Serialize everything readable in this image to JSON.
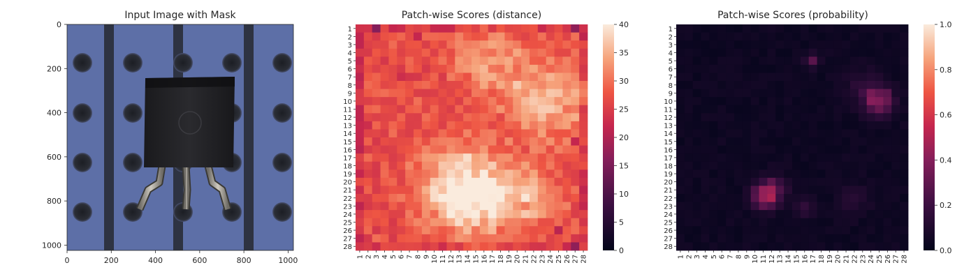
{
  "chart_data": [
    {
      "type": "image",
      "title": "Input Image with Mask",
      "xticks": [
        "0",
        "200",
        "400",
        "600",
        "800",
        "1000"
      ],
      "yticks": [
        "0",
        "200",
        "400",
        "600",
        "800",
        "1000"
      ],
      "xlim": [
        0,
        1024
      ],
      "ylim": [
        1024,
        0
      ],
      "subject": "transistor on perforated blue board"
    },
    {
      "type": "heatmap",
      "title": "Patch-wise Scores (distance)",
      "rows": 28,
      "cols": 28,
      "row_labels": [
        "1",
        "2",
        "3",
        "4",
        "5",
        "6",
        "7",
        "8",
        "9",
        "10",
        "11",
        "12",
        "13",
        "14",
        "15",
        "16",
        "17",
        "18",
        "19",
        "20",
        "21",
        "22",
        "23",
        "24",
        "25",
        "26",
        "27",
        "28"
      ],
      "col_labels": [
        "1",
        "2",
        "3",
        "4",
        "5",
        "6",
        "7",
        "8",
        "9",
        "10",
        "11",
        "12",
        "13",
        "14",
        "15",
        "16",
        "17",
        "18",
        "19",
        "20",
        "21",
        "22",
        "23",
        "24",
        "25",
        "26",
        "27",
        "28"
      ],
      "colorbar": {
        "min": 0,
        "max": 40,
        "ticks": [
          "0",
          "5",
          "10",
          "15",
          "20",
          "25",
          "30",
          "35",
          "40"
        ]
      },
      "colormap": "rocket",
      "base": 27,
      "hotspots": [
        {
          "row": 21,
          "col": 13,
          "value": 40,
          "spread": 3.5
        },
        {
          "row": 22,
          "col": 16,
          "value": 37,
          "spread": 3
        },
        {
          "row": 10,
          "col": 24,
          "value": 36,
          "spread": 3.5
        },
        {
          "row": 5,
          "col": 17,
          "value": 34,
          "spread": 3
        },
        {
          "row": 22,
          "col": 22,
          "value": 34,
          "spread": 2.5
        }
      ],
      "lowspots": [
        {
          "row": 1,
          "col": 3,
          "value": 19
        },
        {
          "row": 1,
          "col": 27,
          "value": 20
        },
        {
          "row": 2,
          "col": 8,
          "value": 22
        },
        {
          "row": 7,
          "col": 6,
          "value": 23
        },
        {
          "row": 13,
          "col": 2,
          "value": 23
        },
        {
          "row": 26,
          "col": 25,
          "value": 21
        },
        {
          "row": 28,
          "col": 27,
          "value": 20
        },
        {
          "row": 15,
          "col": 27,
          "value": 22
        }
      ]
    },
    {
      "type": "heatmap",
      "title": "Patch-wise Scores (probability)",
      "rows": 28,
      "cols": 28,
      "row_labels": [
        "1",
        "2",
        "3",
        "4",
        "5",
        "6",
        "7",
        "8",
        "9",
        "10",
        "11",
        "12",
        "13",
        "14",
        "15",
        "16",
        "17",
        "18",
        "19",
        "20",
        "21",
        "22",
        "23",
        "24",
        "25",
        "26",
        "27",
        "28"
      ],
      "col_labels": [
        "1",
        "2",
        "3",
        "4",
        "5",
        "6",
        "7",
        "8",
        "9",
        "10",
        "11",
        "12",
        "13",
        "14",
        "15",
        "16",
        "17",
        "18",
        "19",
        "20",
        "21",
        "22",
        "23",
        "24",
        "25",
        "26",
        "27",
        "28"
      ],
      "colorbar": {
        "min": 0,
        "max": 1,
        "ticks": [
          "0.0",
          "0.2",
          "0.4",
          "0.6",
          "0.8",
          "1.0"
        ]
      },
      "colormap": "rocket",
      "base": 0.02,
      "hotspots": [
        {
          "row": 10,
          "col": 25,
          "value": 0.38,
          "spread": 1.2
        },
        {
          "row": 21,
          "col": 12,
          "value": 0.35,
          "spread": 1.1
        },
        {
          "row": 22,
          "col": 11,
          "value": 0.3,
          "spread": 1
        },
        {
          "row": 5,
          "col": 17,
          "value": 0.22,
          "spread": 0.6
        },
        {
          "row": 23,
          "col": 16,
          "value": 0.15,
          "spread": 0.8
        },
        {
          "row": 22,
          "col": 22,
          "value": 0.12,
          "spread": 1.2
        },
        {
          "row": 8,
          "col": 23,
          "value": 0.1,
          "spread": 1.5
        }
      ]
    }
  ]
}
